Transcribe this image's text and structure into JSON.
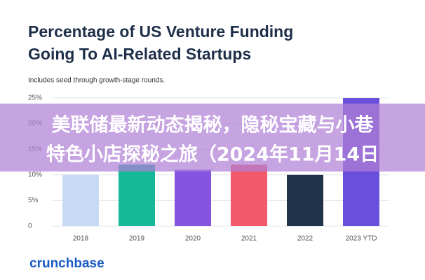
{
  "chart_data": {
    "type": "bar",
    "title": [
      "Percentage of US Venture Funding",
      "Going To AI-Related Startups"
    ],
    "subtitle": "Includes seed through growth-stage rounds.",
    "categories": [
      "2018",
      "2019",
      "2020",
      "2021",
      "2022",
      "2023 YTD"
    ],
    "values": [
      10,
      12,
      11,
      12,
      10,
      25
    ],
    "colors": [
      "#c8dbf6",
      "#17b79a",
      "#8453e0",
      "#f25a6b",
      "#1f3249",
      "#6a4fdc"
    ],
    "ylim": [
      0,
      25
    ],
    "yticks": [
      0,
      {
        "value": 5,
        "label": "5%"
      },
      {
        "value": 10,
        "label": "10%"
      },
      {
        "value": 15,
        "label": "15%"
      },
      {
        "value": 20,
        "label": "20%"
      },
      {
        "value": 25,
        "label": "25%"
      }
    ],
    "grid": true
  },
  "overlay": {
    "lines": [
      "美联储最新动态揭秘，隐秘宝藏与小巷",
      "特色小店探秘之旅（2024年11月14日"
    ]
  },
  "brand": "crunchbase"
}
